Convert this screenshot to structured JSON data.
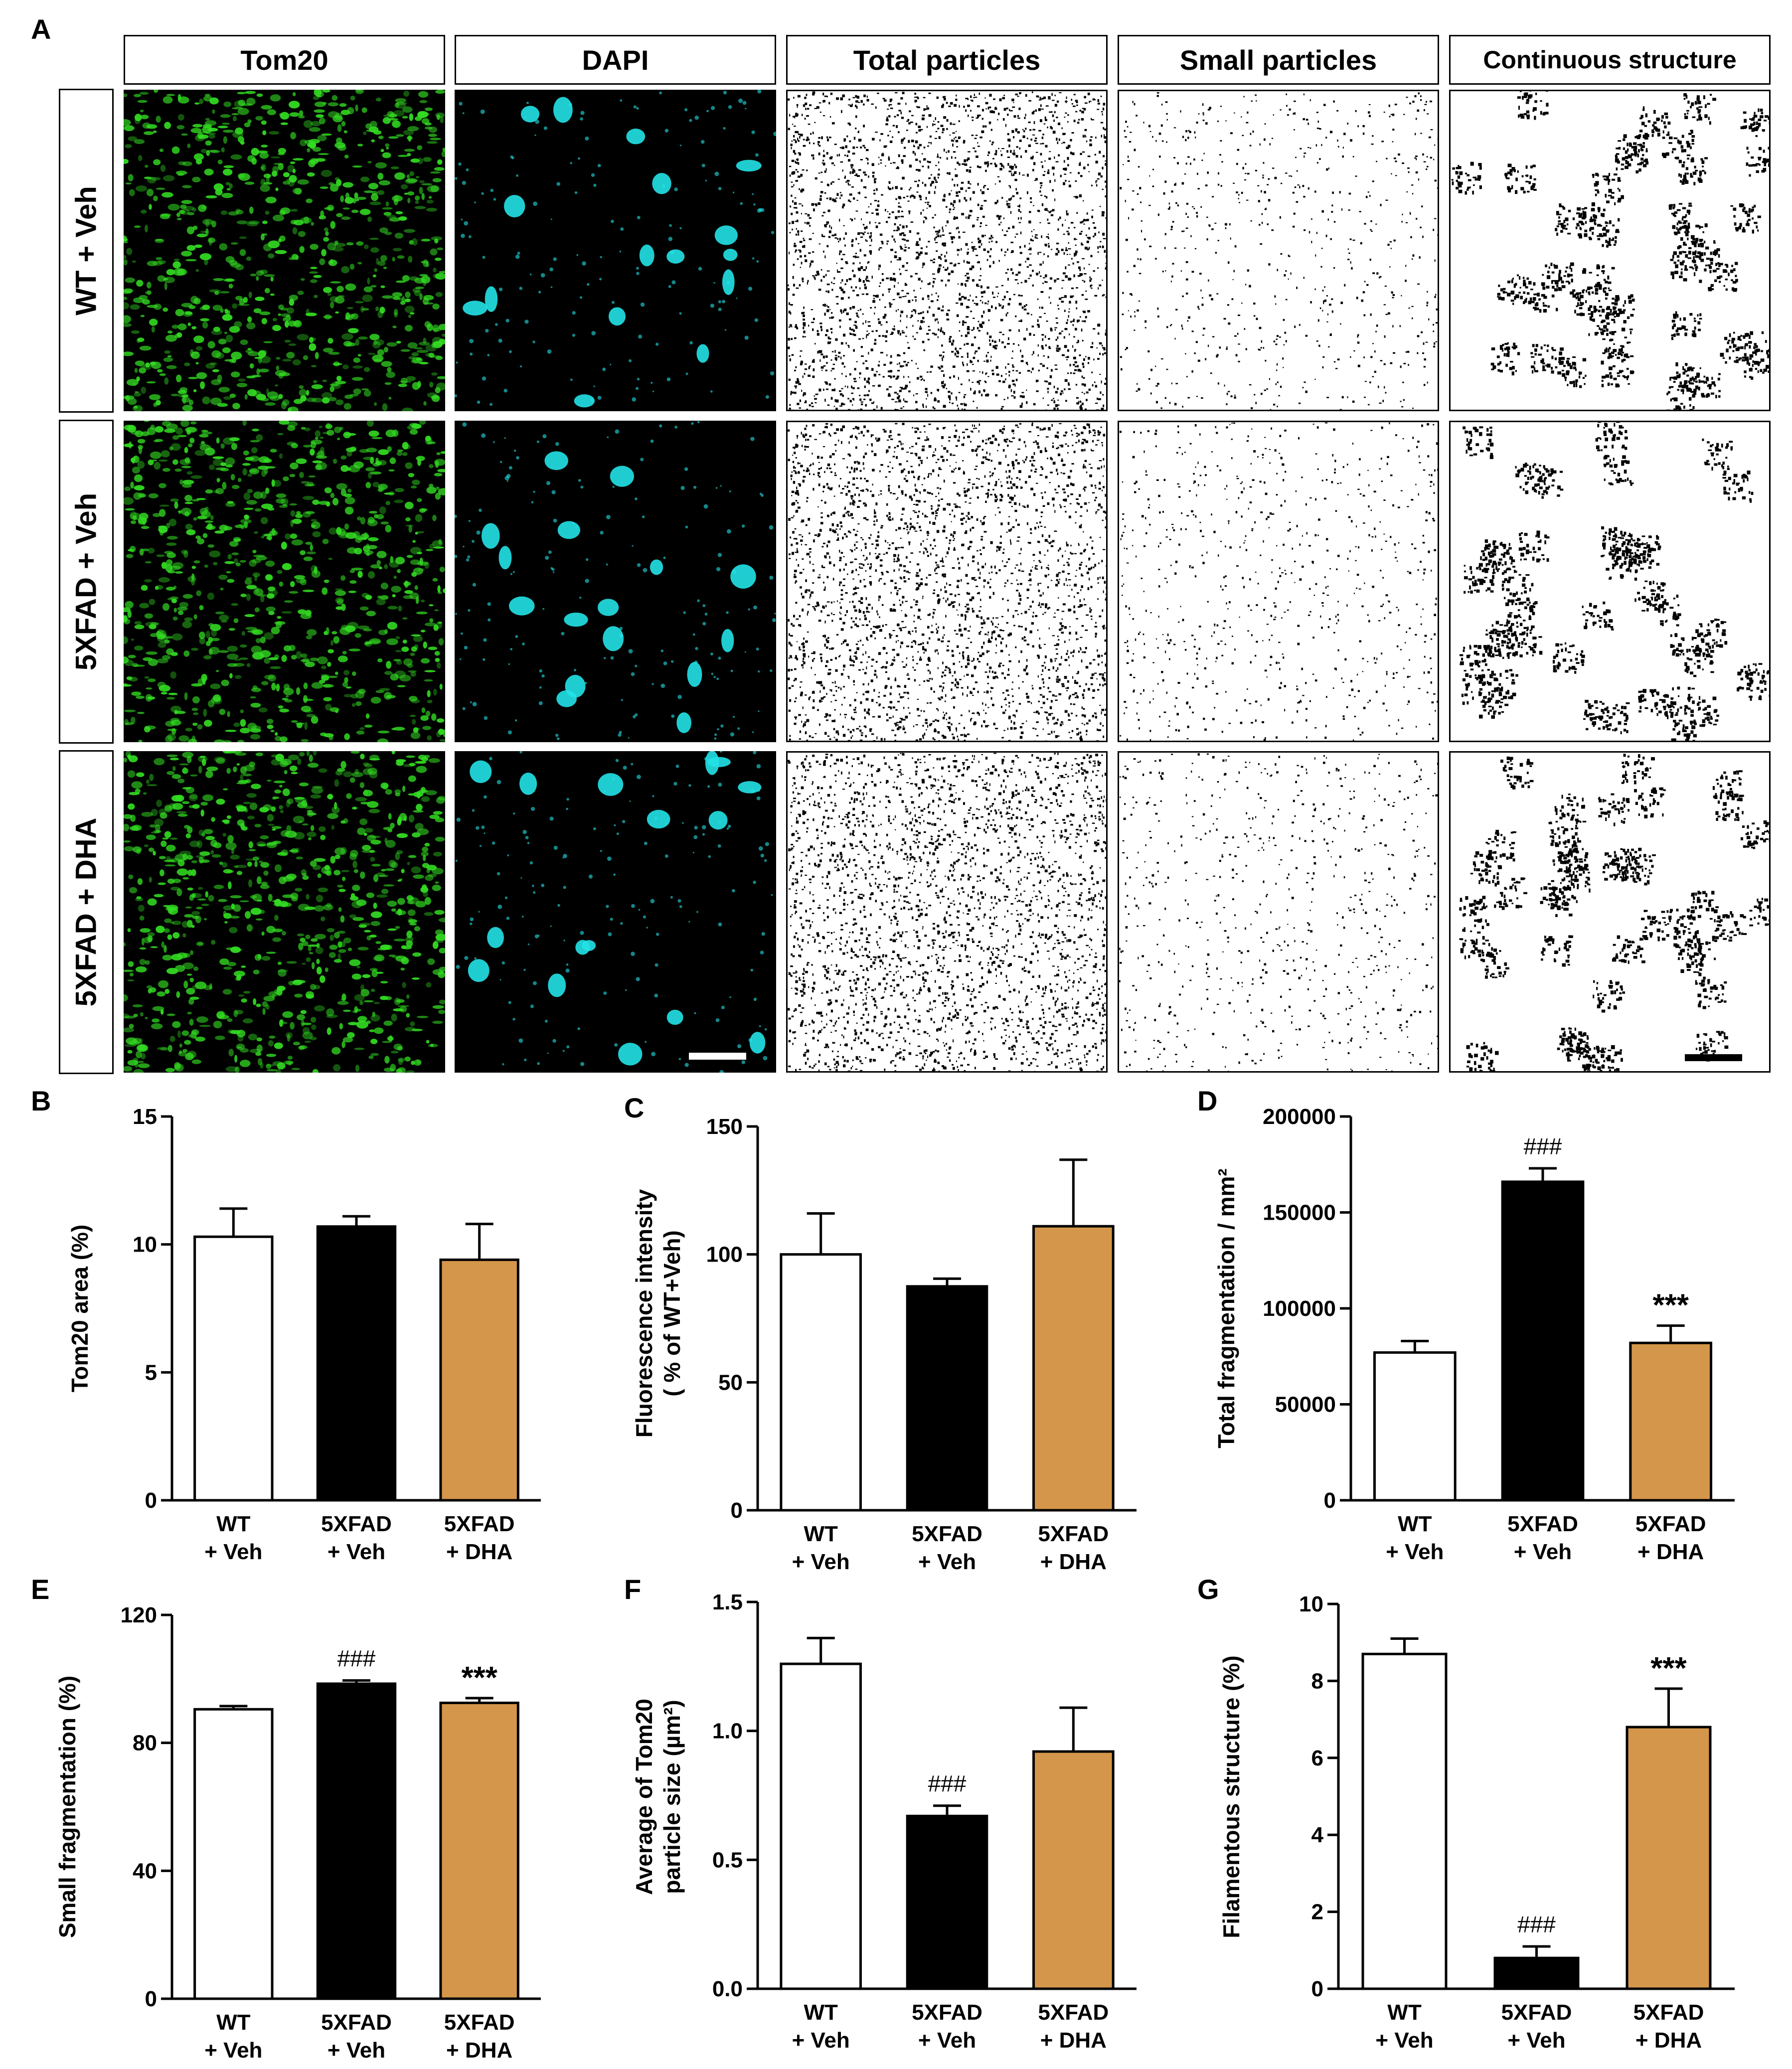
{
  "figure": {
    "panel_labels": [
      "A",
      "B",
      "C",
      "D",
      "E",
      "F",
      "G"
    ],
    "columns": [
      "Tom20",
      "DAPI",
      "Total particles",
      "Small particles",
      "Continuous structure"
    ],
    "rows": [
      "WT + Veh",
      "5XFAD + Veh",
      "5XFAD + DHA"
    ],
    "colors": {
      "tom20": "#33dd22",
      "dapi": "#22e3e8",
      "particles": "#000000",
      "wt_veh_bar": "#ffffff",
      "fxfad_veh_bar": "#000000",
      "fxfad_dha_bar": "#d4964a"
    }
  },
  "chart_data": [
    {
      "panel": "B",
      "type": "bar",
      "categories": [
        [
          "WT",
          "+ Veh"
        ],
        [
          "5XFAD",
          "+ Veh"
        ],
        [
          "5XFAD",
          "+ DHA"
        ]
      ],
      "values": [
        10.3,
        10.7,
        9.4
      ],
      "errors": [
        1.1,
        0.4,
        1.4
      ],
      "ylabel": "Tom20 area (%)",
      "ylim": [
        0,
        15
      ],
      "yticks": [
        0,
        5,
        10,
        15
      ],
      "annotations": [
        "",
        "",
        ""
      ]
    },
    {
      "panel": "C",
      "type": "bar",
      "categories": [
        [
          "WT",
          "+ Veh"
        ],
        [
          "5XFAD",
          "+ Veh"
        ],
        [
          "5XFAD",
          "+ DHA"
        ]
      ],
      "values": [
        100,
        87.5,
        111
      ],
      "errors": [
        16,
        3,
        26
      ],
      "ylabel": [
        "Fluorescence intensity",
        "( % of WT+Veh)"
      ],
      "ylim": [
        0,
        150
      ],
      "yticks": [
        0,
        50,
        100,
        150
      ],
      "annotations": [
        "",
        "",
        ""
      ]
    },
    {
      "panel": "D",
      "type": "bar",
      "categories": [
        [
          "WT",
          "+ Veh"
        ],
        [
          "5XFAD",
          "+ Veh"
        ],
        [
          "5XFAD",
          "+ DHA"
        ]
      ],
      "values": [
        77000,
        166000,
        82000
      ],
      "errors": [
        6000,
        7000,
        9000
      ],
      "ylabel": "Total fragmentation / mm²",
      "ylim": [
        0,
        200000
      ],
      "yticks": [
        0,
        50000,
        100000,
        150000,
        200000
      ],
      "annotations": [
        "",
        "###",
        "***"
      ]
    },
    {
      "panel": "E",
      "type": "bar",
      "categories": [
        [
          "WT",
          "+ Veh"
        ],
        [
          "5XFAD",
          "+ Veh"
        ],
        [
          "5XFAD",
          "+ DHA"
        ]
      ],
      "values": [
        90.5,
        98.5,
        92.5
      ],
      "errors": [
        1,
        1,
        1.5
      ],
      "ylabel": "Small fragmentation (%)",
      "ylim": [
        0,
        120
      ],
      "yticks": [
        0,
        40,
        80,
        120
      ],
      "annotations": [
        "",
        "###",
        "***"
      ]
    },
    {
      "panel": "F",
      "type": "bar",
      "categories": [
        [
          "WT",
          "+ Veh"
        ],
        [
          "5XFAD",
          "+ Veh"
        ],
        [
          "5XFAD",
          "+ DHA"
        ]
      ],
      "values": [
        1.26,
        0.67,
        0.92
      ],
      "errors": [
        0.1,
        0.04,
        0.17
      ],
      "ylabel": [
        "Average of Tom20",
        "particle size (µm²)"
      ],
      "ylim": [
        0,
        1.5
      ],
      "yticks": [
        "0.0",
        "0.5",
        "1.0",
        "1.5"
      ],
      "annotations": [
        "",
        "###",
        ""
      ]
    },
    {
      "panel": "G",
      "type": "bar",
      "categories": [
        [
          "WT",
          "+ Veh"
        ],
        [
          "5XFAD",
          "+ Veh"
        ],
        [
          "5XFAD",
          "+ DHA"
        ]
      ],
      "values": [
        8.7,
        0.8,
        6.8
      ],
      "errors": [
        0.4,
        0.3,
        1.0
      ],
      "ylabel": "Filamentous structure (%)",
      "ylim": [
        0,
        10
      ],
      "yticks": [
        0,
        2,
        4,
        6,
        8,
        10
      ],
      "annotations": [
        "",
        "###",
        "***"
      ]
    }
  ]
}
